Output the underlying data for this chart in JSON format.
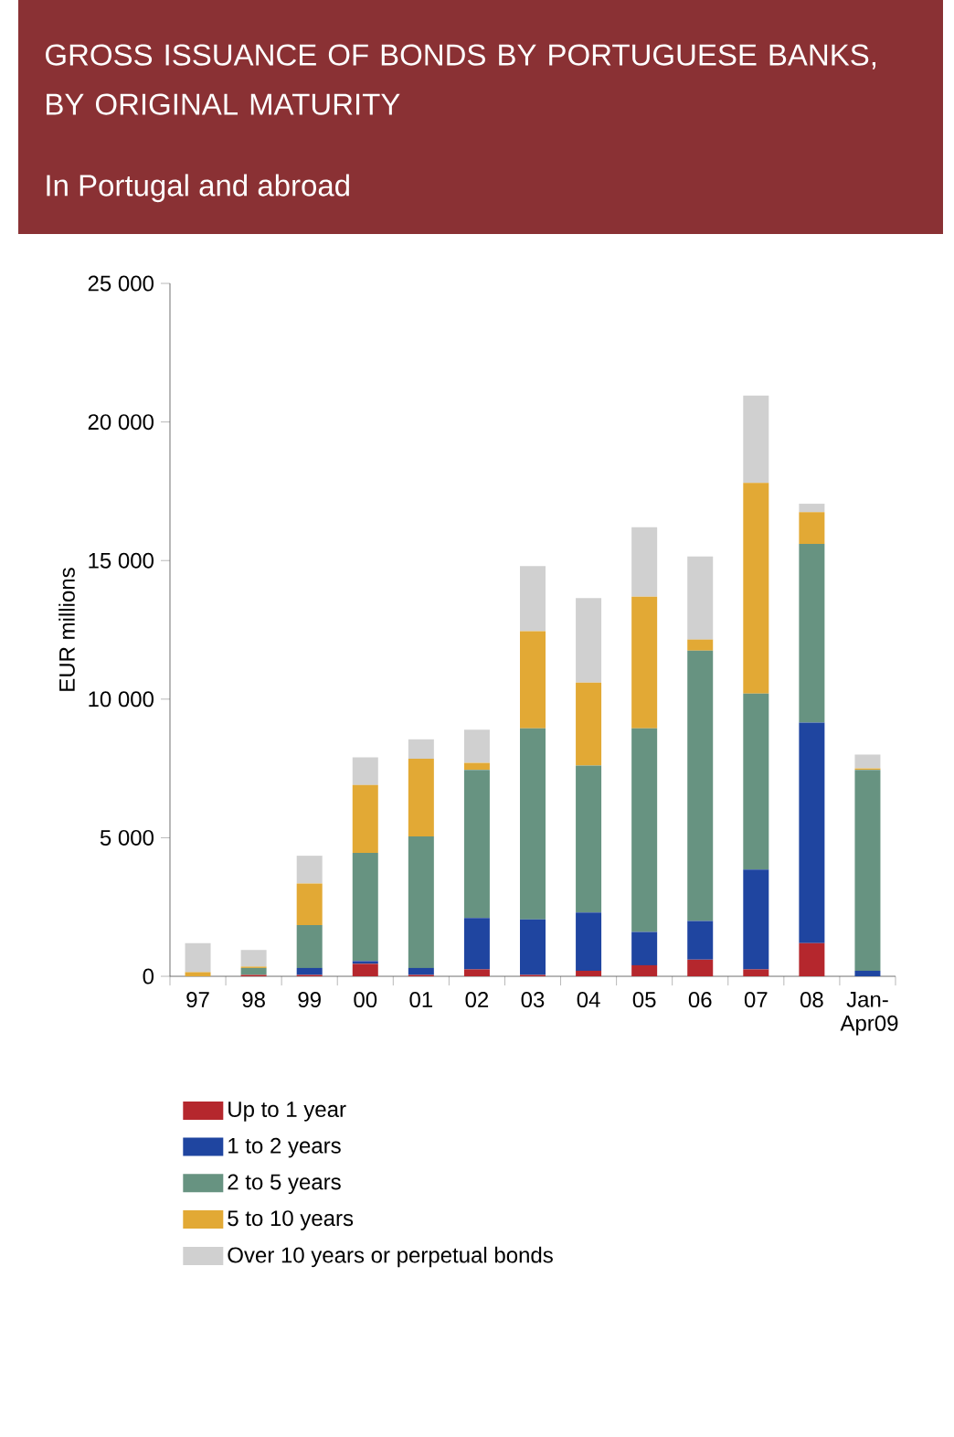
{
  "chart_data": {
    "type": "bar",
    "title": "GROSS ISSUANCE OF BONDS BY PORTUGUESE BANKS, BY ORIGINAL MATURITY",
    "subtitle": "In Portugal and abroad",
    "ylabel": "EUR millions",
    "categories": [
      "97",
      "98",
      "99",
      "00",
      "01",
      "02",
      "03",
      "04",
      "05",
      "06",
      "07",
      "08",
      "Jan-Apr09"
    ],
    "stacked": true,
    "legend": "bottom",
    "ylim": [
      0,
      25000
    ],
    "yticks": [
      {
        "value": 0,
        "label": "0"
      },
      {
        "value": 5000,
        "label": "5 000"
      },
      {
        "value": 10000,
        "label": "10 000"
      },
      {
        "value": 15000,
        "label": "15 000"
      },
      {
        "value": 20000,
        "label": "20 000"
      },
      {
        "value": 25000,
        "label": "25 000"
      }
    ],
    "series": [
      {
        "name": "Up to 1 year",
        "color": "#b5272d",
        "values": [
          0,
          50,
          50,
          450,
          50,
          250,
          50,
          200,
          400,
          600,
          250,
          1200,
          0
        ]
      },
      {
        "name": "1 to 2 years",
        "color": "#1f45a0",
        "values": [
          0,
          0,
          250,
          100,
          250,
          1850,
          2000,
          2100,
          1200,
          1400,
          3600,
          7950,
          200
        ]
      },
      {
        "name": "2 to 5 years",
        "color": "#679381",
        "values": [
          0,
          250,
          1550,
          3900,
          4750,
          5350,
          6900,
          5300,
          7350,
          9750,
          6350,
          6450,
          7250
        ]
      },
      {
        "name": "5 to 10 years",
        "color": "#e2a935",
        "values": [
          150,
          50,
          1500,
          2450,
          2800,
          250,
          3500,
          3000,
          4750,
          400,
          7600,
          1150,
          50
        ]
      },
      {
        "name": "Over 10 years or perpetual bonds",
        "color": "#d0d0d0",
        "values": [
          1050,
          600,
          1000,
          1000,
          700,
          1200,
          2350,
          3050,
          2500,
          3000,
          3150,
          300,
          500
        ]
      }
    ]
  }
}
